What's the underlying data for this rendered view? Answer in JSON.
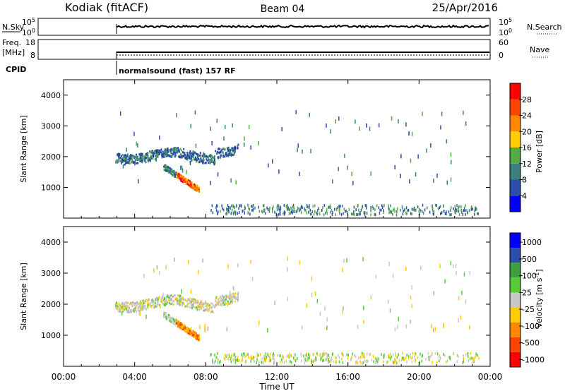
{
  "header": {
    "station": "Kodiak (fitACF)",
    "beam": "Beam 04",
    "date": "25/Apr/2016"
  },
  "xaxis": {
    "label": "Time UT",
    "range_hours": [
      0,
      24
    ],
    "tick_hours": [
      0,
      4,
      8,
      12,
      16,
      20,
      24
    ],
    "tick_labels": [
      "00:00",
      "04:00",
      "08:00",
      "12:00",
      "16:00",
      "20:00",
      "00:00"
    ]
  },
  "strip_panels": {
    "nsky": {
      "left_label": "N.Sky",
      "right_label": "N.Search",
      "left_ticks": [
        "10^5",
        "10^0"
      ],
      "right_ticks": [
        "10^5",
        "10^0"
      ]
    },
    "freq": {
      "left_label_1": "Freq.",
      "left_label_2": "[MHz]",
      "right_label": "Nave",
      "left_ticks": [
        "18",
        "8"
      ],
      "right_ticks": [
        "60",
        "0"
      ]
    },
    "cpid": {
      "label": "CPID",
      "text": "normalsound (fast) 157 RF"
    }
  },
  "chart_data": [
    {
      "type": "heatmap",
      "title": "",
      "xlabel": "Time UT",
      "ylabel": "Slant Range [km]",
      "xlim": [
        0,
        24
      ],
      "ylim": [
        0,
        4500
      ],
      "yticks": [
        1000,
        2000,
        3000,
        4000
      ],
      "colorbar": {
        "label": "Power [dB]",
        "ticks": [
          4,
          8,
          12,
          16,
          20,
          24,
          28
        ],
        "range": [
          0,
          32
        ],
        "colors": [
          "#0000ff",
          "#2b4fa8",
          "#3d7f7f",
          "#55aa44",
          "#ffcc00",
          "#ff8800",
          "#ff4400",
          "#ff0000"
        ]
      },
      "features": [
        {
          "desc": "band",
          "t_start": 2.9,
          "t_end": 9.8,
          "range_km": [
            1900,
            2200
          ],
          "dominant": "blue/green"
        },
        {
          "desc": "sloped echo",
          "t_start": 5.6,
          "t_end": 7.6,
          "range_km": [
            900,
            1700
          ],
          "dominant": "orange/red"
        },
        {
          "desc": "near range clutter",
          "t_start": 8.0,
          "t_end": 23.5,
          "range_km": [
            150,
            500
          ],
          "dominant": "blue"
        }
      ]
    },
    {
      "type": "heatmap",
      "title": "",
      "xlabel": "Time UT",
      "ylabel": "Slant Range [km]",
      "xlim": [
        0,
        24
      ],
      "ylim": [
        0,
        4500
      ],
      "yticks": [
        1000,
        2000,
        3000,
        4000
      ],
      "colorbar": {
        "label": "Velocity [m s^-1]",
        "ticks": [
          "1000",
          "500",
          "100",
          "25",
          "-25",
          "-100",
          "-500",
          "-1000"
        ],
        "range": [
          -1200,
          1200
        ],
        "colors": [
          "#ff0000",
          "#ff4400",
          "#ff8800",
          "#ffcc00",
          "#c8c8c8",
          "#55cc33",
          "#3d9f3d",
          "#2b4fa8",
          "#0000ff"
        ]
      },
      "features": [
        {
          "desc": "band",
          "t_start": 2.9,
          "t_end": 9.8,
          "range_km": [
            1900,
            2200
          ],
          "dominant": "gray"
        },
        {
          "desc": "sloped echo",
          "t_start": 5.6,
          "t_end": 7.6,
          "range_km": [
            900,
            1700
          ],
          "dominant": "orange/yellow"
        },
        {
          "desc": "near range clutter",
          "t_start": 8.0,
          "t_end": 23.5,
          "range_km": [
            150,
            500
          ],
          "dominant": "yellow/green"
        }
      ]
    }
  ]
}
